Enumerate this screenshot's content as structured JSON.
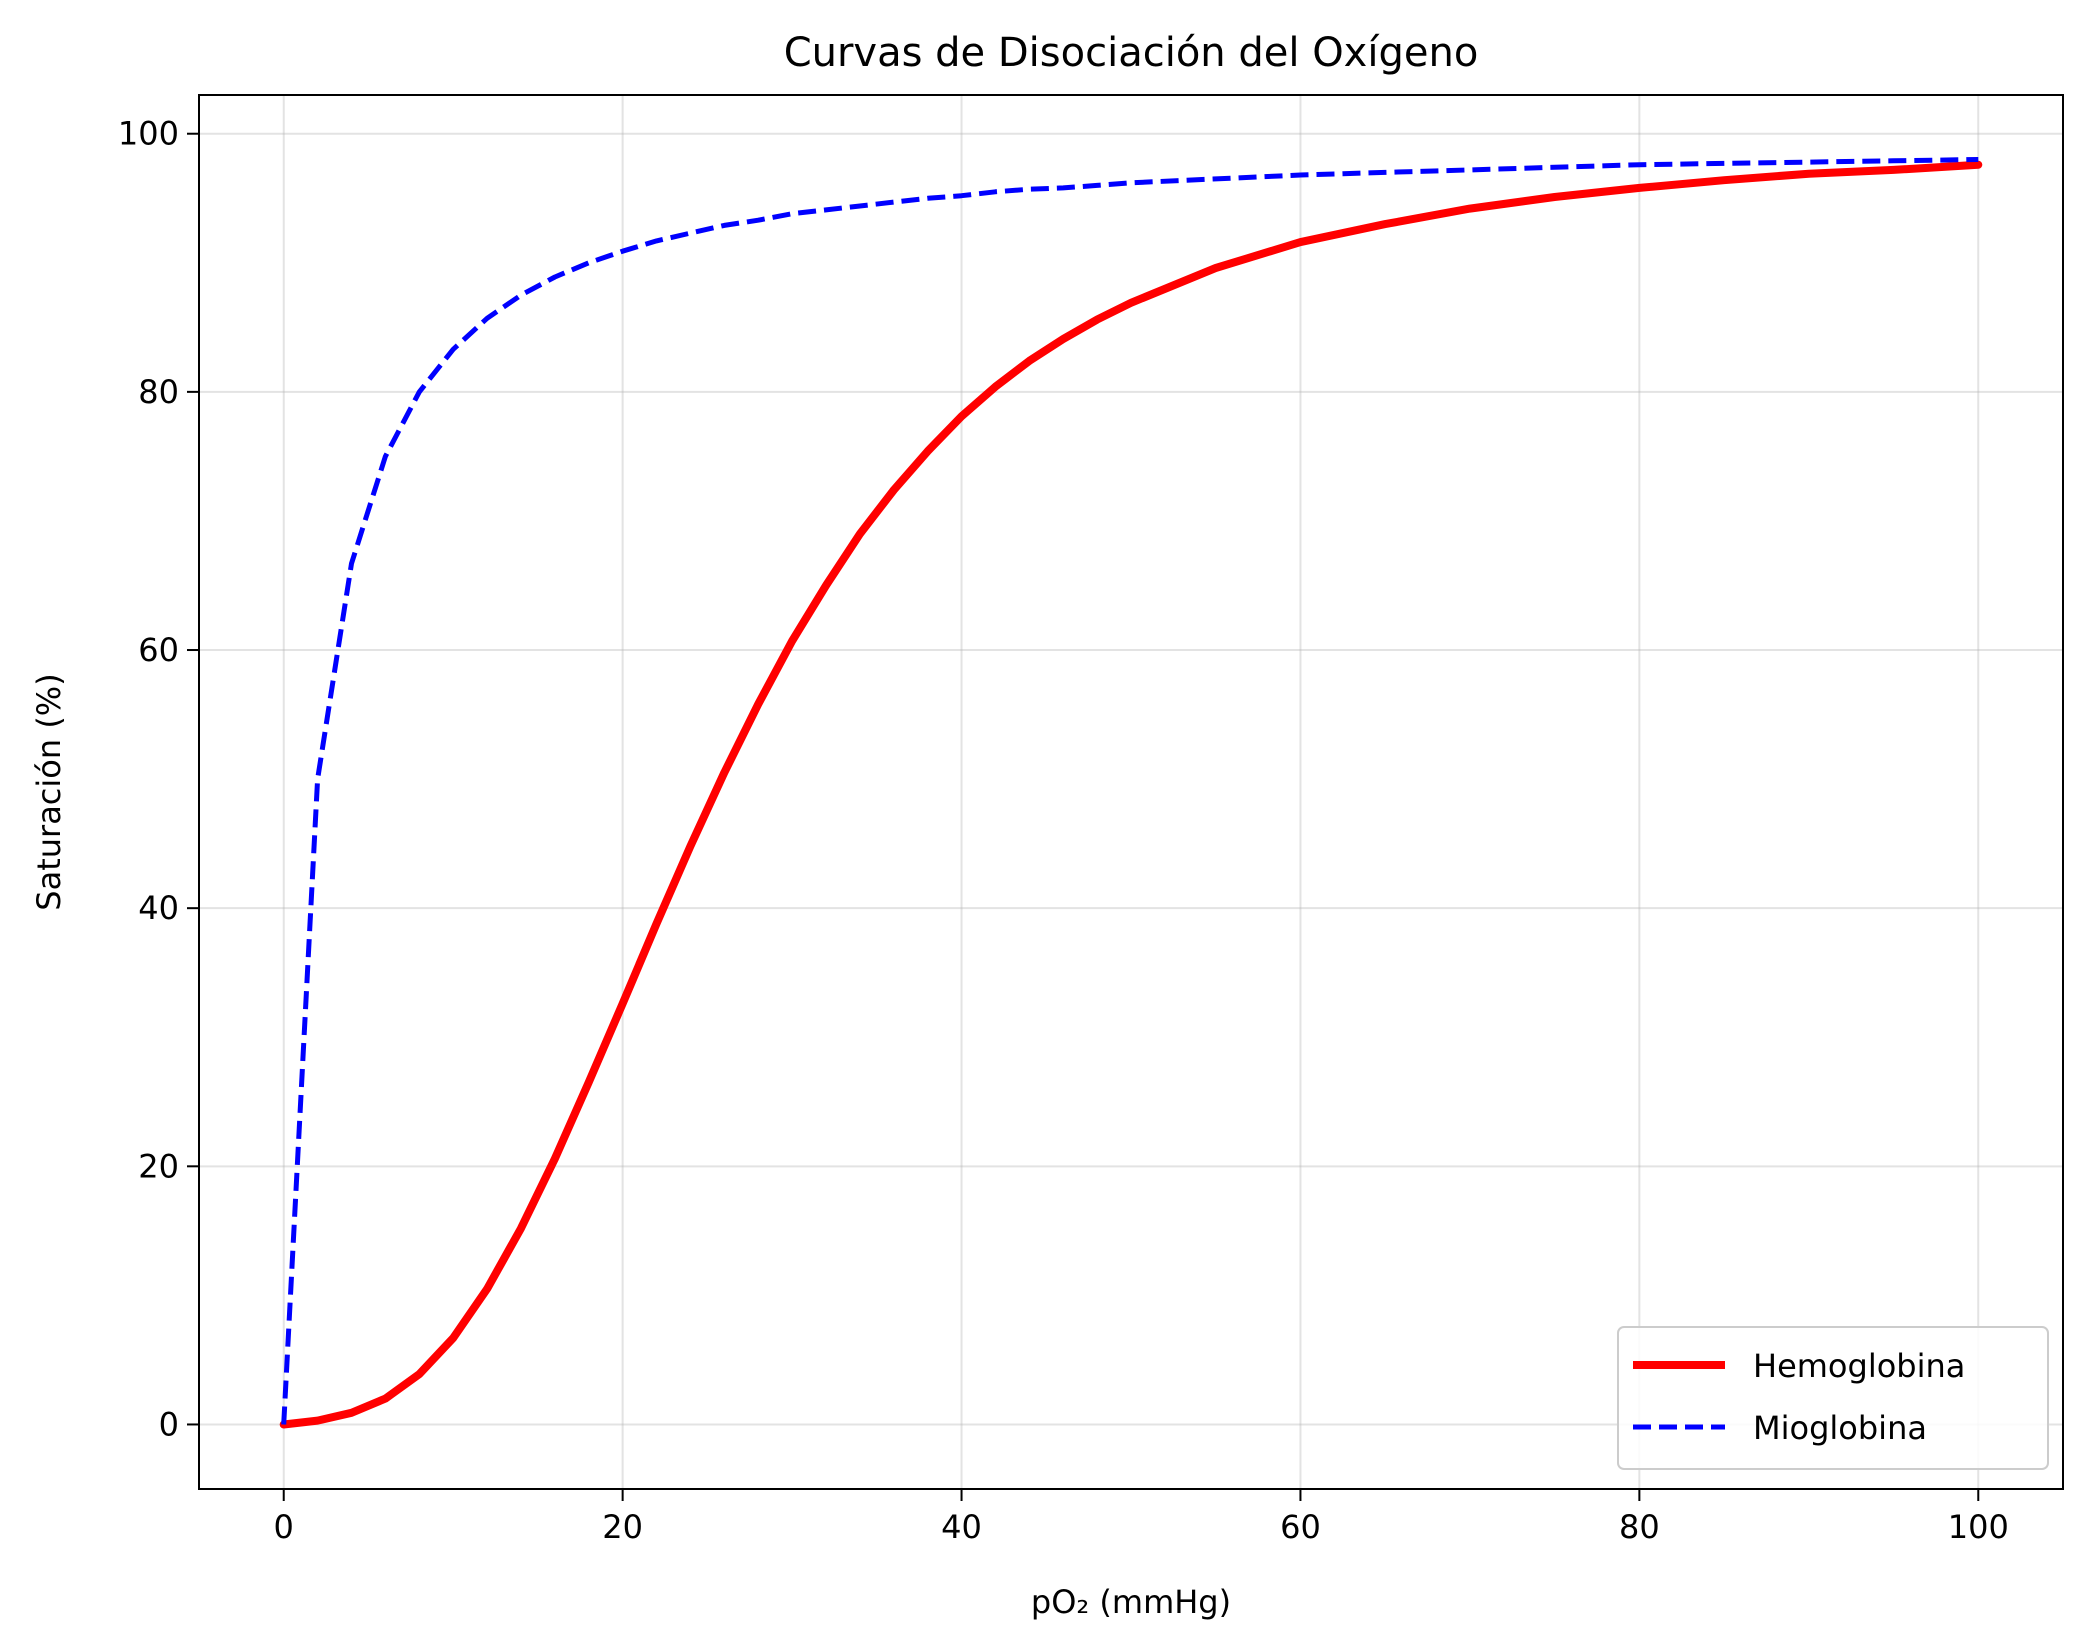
{
  "chart_data": {
    "type": "line",
    "title": "Curvas de Disociación del Oxígeno",
    "xlabel": "pO₂ (mmHg)",
    "ylabel": "Saturación (%)",
    "xlim": [
      -5,
      105
    ],
    "ylim": [
      -5,
      103
    ],
    "xticks": [
      0,
      20,
      40,
      60,
      80,
      100
    ],
    "yticks": [
      0,
      20,
      40,
      60,
      80,
      100
    ],
    "grid": true,
    "legend_position": "lower-right",
    "x": [
      0,
      2,
      4,
      6,
      8,
      10,
      12,
      14,
      16,
      18,
      20,
      22,
      24,
      26,
      28,
      30,
      32,
      34,
      36,
      38,
      40,
      42,
      44,
      46,
      48,
      50,
      55,
      60,
      65,
      70,
      75,
      80,
      85,
      90,
      95,
      100
    ],
    "series": [
      {
        "name": "Hemoglobina",
        "color": "#ff0000",
        "style": "solid",
        "values": [
          0,
          0.3,
          0.9,
          2.0,
          3.9,
          6.7,
          10.5,
          15.2,
          20.6,
          26.5,
          32.6,
          38.8,
          44.8,
          50.5,
          55.8,
          60.7,
          65.0,
          69.0,
          72.4,
          75.4,
          78.1,
          80.4,
          82.4,
          84.1,
          85.6,
          86.9,
          89.6,
          91.6,
          93.0,
          94.2,
          95.1,
          95.8,
          96.4,
          96.9,
          97.2,
          97.6
        ]
      },
      {
        "name": "Mioglobina",
        "color": "#0000ff",
        "style": "dashed",
        "values": [
          0,
          50.0,
          66.7,
          75.0,
          80.0,
          83.3,
          85.7,
          87.5,
          88.9,
          90.0,
          90.9,
          91.7,
          92.3,
          92.9,
          93.3,
          93.8,
          94.1,
          94.4,
          94.7,
          95.0,
          95.2,
          95.5,
          95.7,
          95.8,
          96.0,
          96.2,
          96.5,
          96.8,
          97.0,
          97.2,
          97.4,
          97.6,
          97.7,
          97.8,
          97.9,
          98.0
        ]
      }
    ]
  }
}
